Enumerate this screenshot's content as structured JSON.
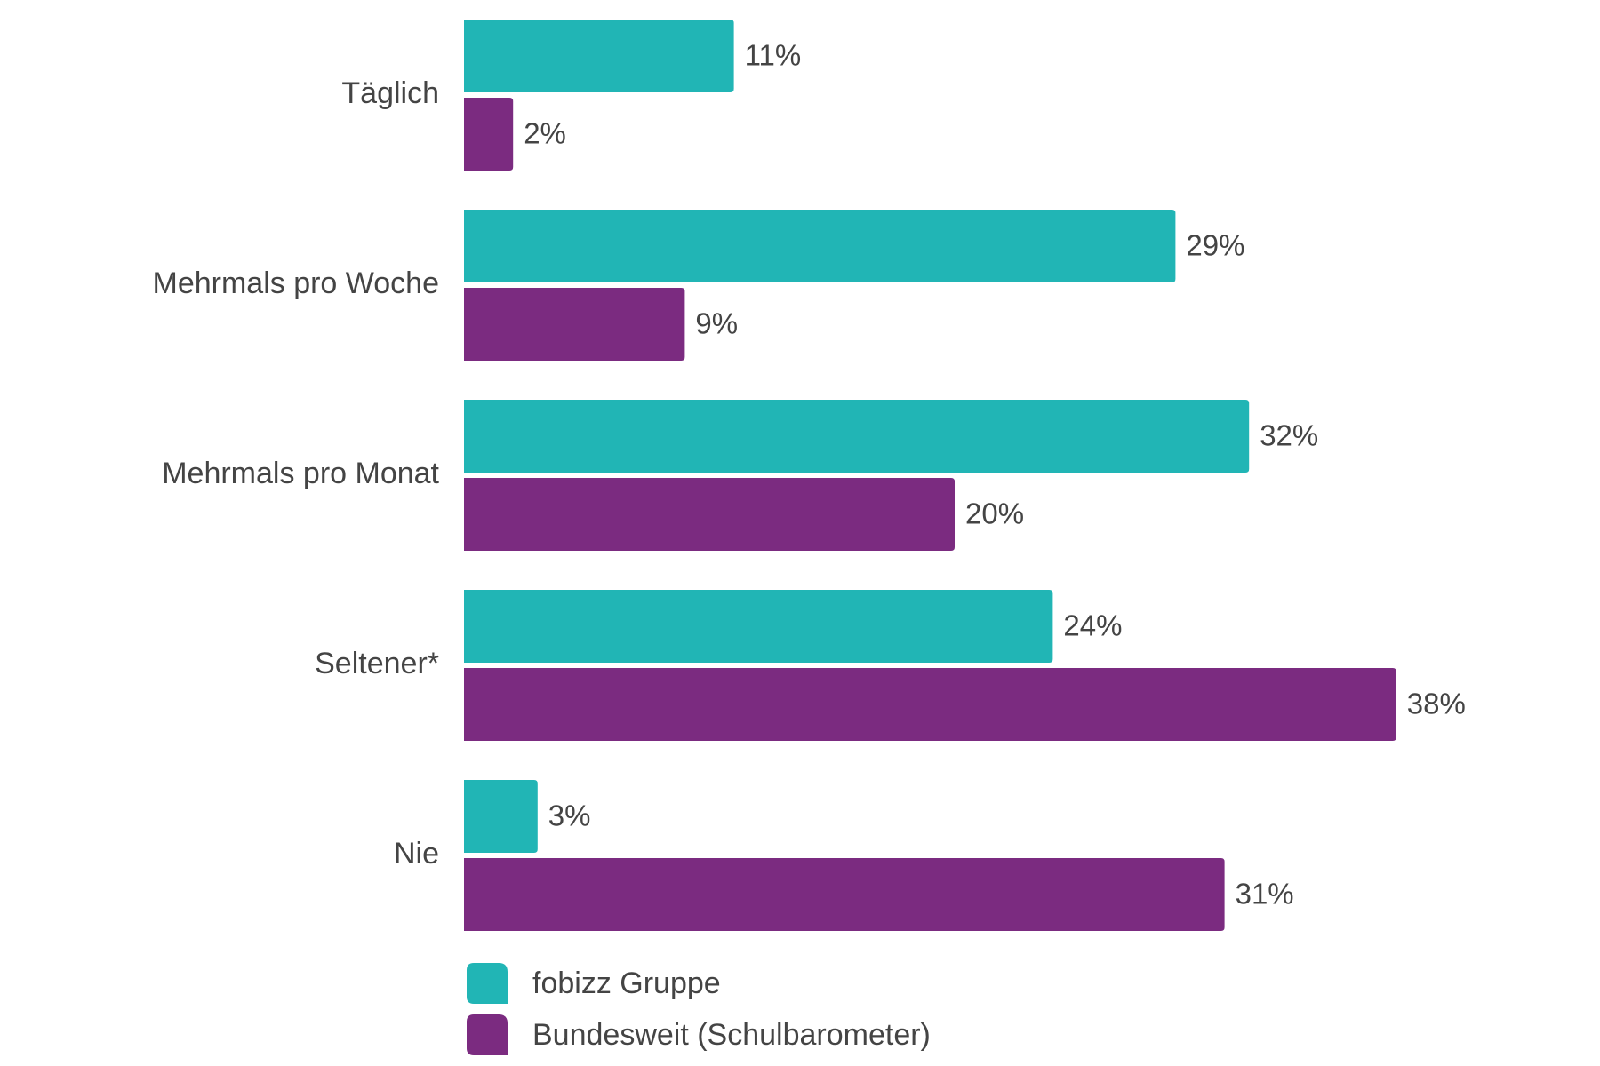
{
  "chart_data": {
    "type": "bar",
    "orientation": "horizontal",
    "categories": [
      "Täglich",
      "Mehrmals pro Woche",
      "Mehrmals pro Monat",
      "Seltener*",
      "Nie"
    ],
    "series": [
      {
        "name": "fobizz Gruppe",
        "color": "#21b5b5",
        "values": [
          11,
          29,
          32,
          24,
          3
        ],
        "labels": [
          "11%",
          "29%",
          "32%",
          "24%",
          "3%"
        ]
      },
      {
        "name": "Bundesweit (Schulbarometer)",
        "color": "#7b2b80",
        "values": [
          2,
          9,
          20,
          38,
          31
        ],
        "labels": [
          "2%",
          "9%",
          "20%",
          "38%",
          "31%"
        ]
      }
    ],
    "xlim": [
      0,
      40
    ],
    "grid": false,
    "legend_position": "bottom-left",
    "title": "",
    "xlabel": "",
    "ylabel": ""
  }
}
